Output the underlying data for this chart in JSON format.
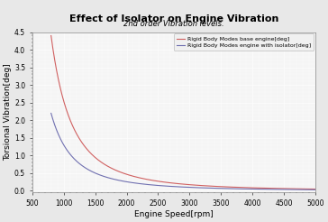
{
  "title": "Effect of Isolator on Engine Vibration",
  "subtitle": "2nd order Vibration levels.",
  "xlabel": "Engine Speed[rpm]",
  "ylabel": "Torsional Vibration[deg]",
  "xlim": [
    500,
    5000
  ],
  "ylim": [
    -0.05,
    4.5
  ],
  "yticks": [
    0,
    0.5,
    1.0,
    1.5,
    2.0,
    2.5,
    3.0,
    3.5,
    4.0,
    4.5
  ],
  "xticks": [
    500,
    1000,
    1500,
    2000,
    2500,
    3000,
    3500,
    4000,
    4500,
    5000
  ],
  "line1_color": "#d06060",
  "line2_color": "#7070b0",
  "line1_label": "Rigid Body Modes base engine[deg]",
  "line2_label": "Rigid Body Modes engine with isolator[deg]",
  "bg_color": "#e8e8e8",
  "plot_bg_color": "#f5f5f5",
  "grid_color": "#ffffff",
  "title_fontsize": 8,
  "subtitle_fontsize": 6,
  "label_fontsize": 6.5,
  "tick_fontsize": 5.5,
  "legend_fontsize": 4.5
}
